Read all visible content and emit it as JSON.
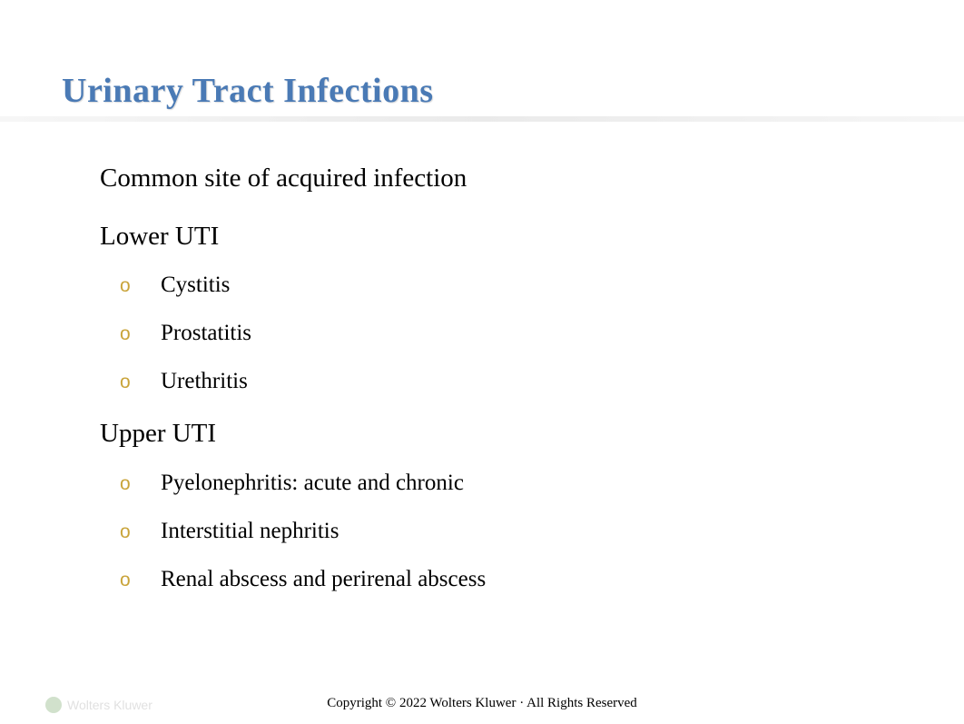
{
  "title_fontsize": 38,
  "title_color": "#4a7ab5",
  "body_font": "Times New Roman",
  "background_color": "#ffffff",
  "bullet_color_l1": "#c9a43a",
  "bullet_color_l2": "#c9a43a",
  "l1_fontsize": 29,
  "l2_fontsize": 25,
  "bullet_l1_glyph": "",
  "bullet_l2_glyph": "o",
  "title": "Urinary Tract Infections",
  "items": [
    {
      "text": "Common site of acquired infection",
      "sub": []
    },
    {
      "text": "Lower UTI",
      "sub": [
        {
          "text": "Cystitis"
        },
        {
          "text": "Prostatitis"
        },
        {
          "text": "Urethritis"
        }
      ]
    },
    {
      "text": "Upper UTI",
      "sub": [
        {
          "text": "Pyelonephritis: acute and chronic"
        },
        {
          "text": "Interstitial nephritis"
        },
        {
          "text": "Renal abscess and perirenal abscess"
        }
      ]
    }
  ],
  "footer": "Copyright © 2022 Wolters Kluwer · All Rights Reserved",
  "logo_text": "Wolters Kluwer"
}
